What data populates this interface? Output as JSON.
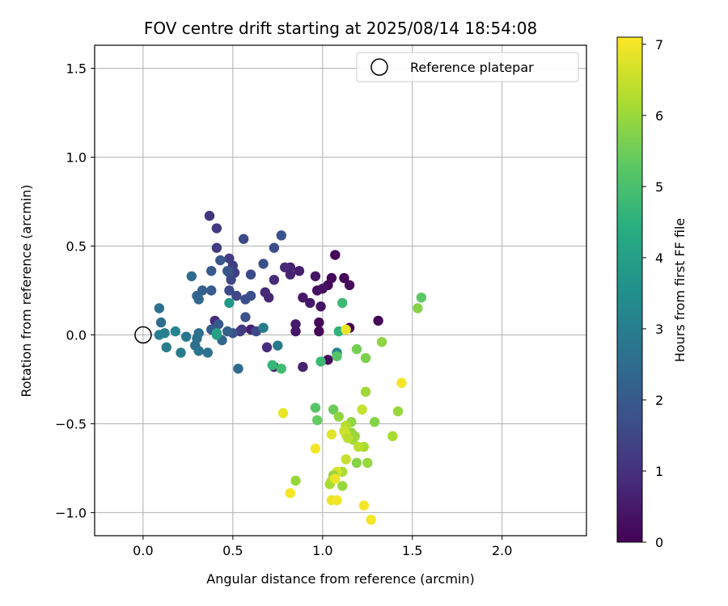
{
  "chart_data": {
    "type": "scatter",
    "title": "FOV centre drift starting at 2025/08/14 18:54:08",
    "xlabel": "Angular distance from reference (arcmin)",
    "ylabel": "Rotation from reference (arcmin)",
    "xlim": [
      -0.27,
      2.47
    ],
    "ylim": [
      -1.13,
      1.63
    ],
    "xticks": [
      0.0,
      0.5,
      1.0,
      1.5,
      2.0
    ],
    "xtick_labels": [
      "0.0",
      "0.5",
      "1.0",
      "1.5",
      "2.0"
    ],
    "yticks": [
      -1.0,
      -0.5,
      0.0,
      0.5,
      1.0,
      1.5
    ],
    "ytick_labels": [
      "−1.0",
      "−0.5",
      "0.0",
      "0.5",
      "1.0",
      "1.5"
    ],
    "grid": true,
    "legend": {
      "position": "top-right",
      "entries": [
        "Reference platepar"
      ]
    },
    "reference_point": {
      "x": 0.0,
      "y": 0.0
    },
    "colorbar": {
      "label": "Hours from first FF file",
      "range": [
        0,
        7.1
      ],
      "ticks": [
        0,
        1,
        2,
        3,
        4,
        5,
        6,
        7
      ],
      "tick_labels": [
        "0",
        "1",
        "2",
        "3",
        "4",
        "5",
        "6",
        "7"
      ],
      "colormap": "viridis"
    },
    "points": [
      {
        "x": 1.05,
        "y": 0.32,
        "c": 0.05
      },
      {
        "x": 1.07,
        "y": 0.45,
        "c": 0.1
      },
      {
        "x": 1.03,
        "y": 0.28,
        "c": 0.15
      },
      {
        "x": 1.12,
        "y": 0.32,
        "c": 0.1
      },
      {
        "x": 1.15,
        "y": 0.28,
        "c": 0.2
      },
      {
        "x": 1.31,
        "y": 0.08,
        "c": 0.1
      },
      {
        "x": 1.15,
        "y": 0.04,
        "c": 0.05
      },
      {
        "x": 0.98,
        "y": 0.07,
        "c": 0.15
      },
      {
        "x": 0.98,
        "y": 0.02,
        "c": 0.1
      },
      {
        "x": 1.03,
        "y": -0.14,
        "c": 0.15
      },
      {
        "x": 0.97,
        "y": 0.25,
        "c": 0.3
      },
      {
        "x": 1.0,
        "y": 0.26,
        "c": 0.4
      },
      {
        "x": 0.99,
        "y": 0.16,
        "c": 0.35
      },
      {
        "x": 0.96,
        "y": 0.33,
        "c": 0.4
      },
      {
        "x": 0.93,
        "y": 0.18,
        "c": 0.5
      },
      {
        "x": 0.89,
        "y": 0.21,
        "c": 0.45
      },
      {
        "x": 0.87,
        "y": 0.36,
        "c": 0.6
      },
      {
        "x": 0.85,
        "y": 0.06,
        "c": 0.55
      },
      {
        "x": 0.85,
        "y": 0.02,
        "c": 0.45
      },
      {
        "x": 0.82,
        "y": 0.38,
        "c": 0.7
      },
      {
        "x": 0.82,
        "y": 0.34,
        "c": 0.75
      },
      {
        "x": 0.79,
        "y": 0.38,
        "c": 0.8
      },
      {
        "x": 0.73,
        "y": 0.31,
        "c": 0.9
      },
      {
        "x": 0.7,
        "y": 0.21,
        "c": 0.8
      },
      {
        "x": 0.68,
        "y": 0.24,
        "c": 0.85
      },
      {
        "x": 0.6,
        "y": 0.03,
        "c": 0.7
      },
      {
        "x": 0.89,
        "y": -0.18,
        "c": 0.7
      },
      {
        "x": 0.73,
        "y": -0.18,
        "c": 0.8
      },
      {
        "x": 0.69,
        "y": -0.07,
        "c": 0.9
      },
      {
        "x": 0.37,
        "y": 0.67,
        "c": 1.1
      },
      {
        "x": 0.41,
        "y": 0.6,
        "c": 1.2
      },
      {
        "x": 0.41,
        "y": 0.49,
        "c": 1.25
      },
      {
        "x": 0.4,
        "y": 0.08,
        "c": 0.9
      },
      {
        "x": 0.48,
        "y": 0.43,
        "c": 1.3
      },
      {
        "x": 0.5,
        "y": 0.39,
        "c": 1.35
      },
      {
        "x": 0.51,
        "y": 0.35,
        "c": 1.4
      },
      {
        "x": 0.48,
        "y": 0.35,
        "c": 1.5
      },
      {
        "x": 0.49,
        "y": 0.31,
        "c": 1.55
      },
      {
        "x": 0.48,
        "y": 0.25,
        "c": 1.6
      },
      {
        "x": 0.52,
        "y": 0.22,
        "c": 1.5
      },
      {
        "x": 0.55,
        "y": 0.03,
        "c": 1.2
      },
      {
        "x": 0.54,
        "y": 0.02,
        "c": 1.3
      },
      {
        "x": 0.56,
        "y": 0.54,
        "c": 1.6
      },
      {
        "x": 0.73,
        "y": 0.49,
        "c": 1.7
      },
      {
        "x": 0.77,
        "y": 0.56,
        "c": 1.8
      },
      {
        "x": 0.67,
        "y": 0.4,
        "c": 1.75
      },
      {
        "x": 0.6,
        "y": 0.34,
        "c": 1.6
      },
      {
        "x": 0.57,
        "y": 0.2,
        "c": 1.7
      },
      {
        "x": 0.6,
        "y": 0.22,
        "c": 1.75
      },
      {
        "x": 0.57,
        "y": 0.1,
        "c": 1.8
      },
      {
        "x": 0.63,
        "y": 0.02,
        "c": 1.6
      },
      {
        "x": 0.5,
        "y": 0.01,
        "c": 1.85
      },
      {
        "x": 0.47,
        "y": 0.36,
        "c": 1.9
      },
      {
        "x": 0.43,
        "y": 0.42,
        "c": 2.0
      },
      {
        "x": 0.38,
        "y": 0.36,
        "c": 2.0
      },
      {
        "x": 0.38,
        "y": 0.25,
        "c": 2.1
      },
      {
        "x": 0.42,
        "y": 0.06,
        "c": 2.0
      },
      {
        "x": 0.38,
        "y": 0.03,
        "c": 2.1
      },
      {
        "x": 0.33,
        "y": 0.25,
        "c": 2.2
      },
      {
        "x": 0.3,
        "y": 0.22,
        "c": 2.3
      },
      {
        "x": 0.31,
        "y": 0.2,
        "c": 2.4
      },
      {
        "x": 0.27,
        "y": 0.33,
        "c": 2.5
      },
      {
        "x": 0.47,
        "y": 0.02,
        "c": 2.2
      },
      {
        "x": 0.44,
        "y": -0.03,
        "c": 2.4
      },
      {
        "x": 0.53,
        "y": -0.19,
        "c": 2.5
      },
      {
        "x": 0.31,
        "y": 0.01,
        "c": 2.6
      },
      {
        "x": 0.3,
        "y": -0.02,
        "c": 2.7
      },
      {
        "x": 0.29,
        "y": -0.06,
        "c": 2.6
      },
      {
        "x": 0.31,
        "y": -0.09,
        "c": 2.75
      },
      {
        "x": 0.24,
        "y": -0.01,
        "c": 2.8
      },
      {
        "x": 0.36,
        "y": -0.1,
        "c": 2.7
      },
      {
        "x": 0.21,
        "y": -0.1,
        "c": 2.9
      },
      {
        "x": 0.13,
        "y": -0.07,
        "c": 3.0
      },
      {
        "x": 0.1,
        "y": 0.07,
        "c": 2.5
      },
      {
        "x": 0.09,
        "y": 0.15,
        "c": 2.6
      },
      {
        "x": 0.12,
        "y": 0.01,
        "c": 3.0
      },
      {
        "x": 0.09,
        "y": 0.0,
        "c": 3.1
      },
      {
        "x": 0.18,
        "y": 0.02,
        "c": 3.2
      },
      {
        "x": 0.67,
        "y": 0.04,
        "c": 3.0
      },
      {
        "x": 0.75,
        "y": -0.06,
        "c": 2.9
      },
      {
        "x": 1.08,
        "y": -0.1,
        "c": 3.2
      },
      {
        "x": 0.41,
        "y": 0.0,
        "c": 4.0
      },
      {
        "x": 0.41,
        "y": 0.01,
        "c": 4.1
      },
      {
        "x": 0.48,
        "y": 0.18,
        "c": 3.8
      },
      {
        "x": 1.09,
        "y": 0.02,
        "c": 4.6
      },
      {
        "x": 1.11,
        "y": 0.18,
        "c": 4.8
      },
      {
        "x": 0.72,
        "y": -0.17,
        "c": 4.7
      },
      {
        "x": 0.77,
        "y": -0.19,
        "c": 4.9
      },
      {
        "x": 0.99,
        "y": -0.15,
        "c": 4.8
      },
      {
        "x": 1.08,
        "y": -0.12,
        "c": 5.2
      },
      {
        "x": 1.55,
        "y": 0.21,
        "c": 5.3
      },
      {
        "x": 1.53,
        "y": 0.15,
        "c": 5.8
      },
      {
        "x": 1.19,
        "y": -0.08,
        "c": 5.6
      },
      {
        "x": 1.24,
        "y": -0.13,
        "c": 5.7
      },
      {
        "x": 1.33,
        "y": -0.04,
        "c": 5.9
      },
      {
        "x": 0.96,
        "y": -0.41,
        "c": 5.2
      },
      {
        "x": 0.97,
        "y": -0.48,
        "c": 5.4
      },
      {
        "x": 1.06,
        "y": -0.42,
        "c": 5.5
      },
      {
        "x": 1.09,
        "y": -0.46,
        "c": 5.9
      },
      {
        "x": 1.24,
        "y": -0.32,
        "c": 6.1
      },
      {
        "x": 1.29,
        "y": -0.49,
        "c": 5.8
      },
      {
        "x": 1.42,
        "y": -0.43,
        "c": 6.0
      },
      {
        "x": 1.39,
        "y": -0.57,
        "c": 6.2
      },
      {
        "x": 1.16,
        "y": -0.49,
        "c": 5.9
      },
      {
        "x": 1.16,
        "y": -0.55,
        "c": 6.0
      },
      {
        "x": 1.18,
        "y": -0.57,
        "c": 6.0
      },
      {
        "x": 1.17,
        "y": -0.59,
        "c": 6.1
      },
      {
        "x": 1.22,
        "y": -0.42,
        "c": 6.5
      },
      {
        "x": 1.23,
        "y": -0.63,
        "c": 6.2
      },
      {
        "x": 1.25,
        "y": -0.72,
        "c": 6.0
      },
      {
        "x": 1.19,
        "y": -0.72,
        "c": 5.8
      },
      {
        "x": 1.13,
        "y": -0.51,
        "c": 6.3
      },
      {
        "x": 1.12,
        "y": -0.54,
        "c": 6.5
      },
      {
        "x": 1.13,
        "y": -0.56,
        "c": 6.6
      },
      {
        "x": 1.14,
        "y": -0.58,
        "c": 6.4
      },
      {
        "x": 1.2,
        "y": -0.63,
        "c": 6.4
      },
      {
        "x": 1.13,
        "y": -0.7,
        "c": 6.5
      },
      {
        "x": 1.11,
        "y": -0.77,
        "c": 6.2
      },
      {
        "x": 1.08,
        "y": -0.77,
        "c": 6.7
      },
      {
        "x": 1.06,
        "y": -0.79,
        "c": 6.0
      },
      {
        "x": 1.05,
        "y": -0.82,
        "c": 6.4
      },
      {
        "x": 1.04,
        "y": -0.84,
        "c": 6.2
      },
      {
        "x": 1.07,
        "y": -0.81,
        "c": 6.9
      },
      {
        "x": 1.11,
        "y": -0.85,
        "c": 6.0
      },
      {
        "x": 1.05,
        "y": -0.56,
        "c": 6.8
      },
      {
        "x": 0.96,
        "y": -0.64,
        "c": 7.0
      },
      {
        "x": 0.78,
        "y": -0.44,
        "c": 6.9
      },
      {
        "x": 0.85,
        "y": -0.82,
        "c": 6.0
      },
      {
        "x": 0.82,
        "y": -0.89,
        "c": 7.0
      },
      {
        "x": 1.05,
        "y": -0.93,
        "c": 6.9
      },
      {
        "x": 1.08,
        "y": -0.93,
        "c": 7.0
      },
      {
        "x": 1.23,
        "y": -0.96,
        "c": 7.0
      },
      {
        "x": 1.27,
        "y": -1.04,
        "c": 7.0
      },
      {
        "x": 1.44,
        "y": -0.27,
        "c": 7.0
      },
      {
        "x": 1.13,
        "y": 0.03,
        "c": 6.9
      }
    ]
  }
}
